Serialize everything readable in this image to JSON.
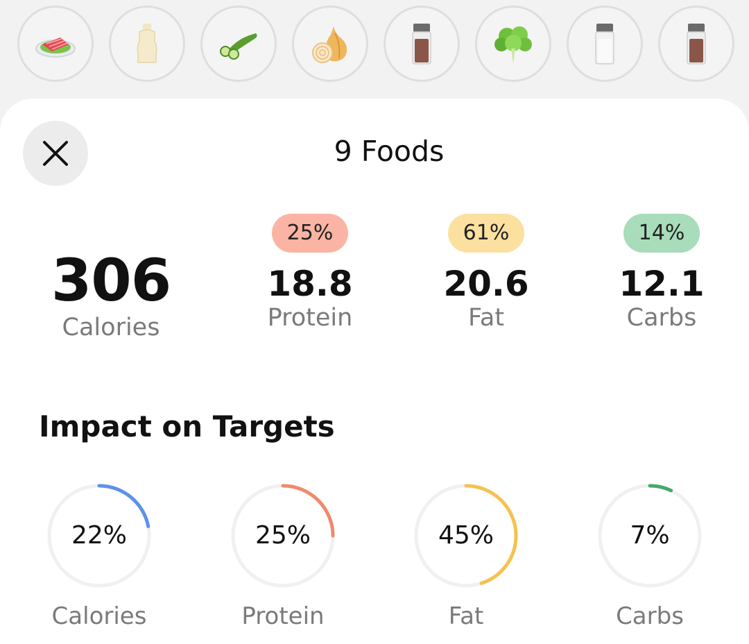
{
  "food_strip": {
    "items": [
      {
        "icon": "salmon-plate-icon"
      },
      {
        "icon": "mayo-bottle-icon"
      },
      {
        "icon": "cucumber-icon"
      },
      {
        "icon": "onion-icon"
      },
      {
        "icon": "spice-jar-brown-icon"
      },
      {
        "icon": "lettuce-icon"
      },
      {
        "icon": "salt-shaker-icon"
      },
      {
        "icon": "spice-jar-brown-icon"
      }
    ]
  },
  "sheet": {
    "title": "9 Foods",
    "close_icon": "close-icon"
  },
  "summary": {
    "calories": {
      "value": "306",
      "label": "Calories"
    },
    "protein": {
      "pct": "25%",
      "value": "18.8",
      "label": "Protein",
      "color": "#fbb4a3"
    },
    "fat": {
      "pct": "61%",
      "value": "20.6",
      "label": "Fat",
      "color": "#fbe0a0"
    },
    "carbs": {
      "pct": "14%",
      "value": "12.1",
      "label": "Carbs",
      "color": "#a8dcbb"
    }
  },
  "impact": {
    "title": "Impact on Targets",
    "rings": [
      {
        "label": "Calories",
        "pct_text": "22%",
        "fraction": 0.22,
        "color": "#5b93e6"
      },
      {
        "label": "Protein",
        "pct_text": "25%",
        "fraction": 0.25,
        "color": "#ef8a6c"
      },
      {
        "label": "Fat",
        "pct_text": "45%",
        "fraction": 0.45,
        "color": "#f5c24d"
      },
      {
        "label": "Carbs",
        "pct_text": "7%",
        "fraction": 0.07,
        "color": "#46a86a"
      }
    ],
    "track_color": "#f0f0f0"
  }
}
